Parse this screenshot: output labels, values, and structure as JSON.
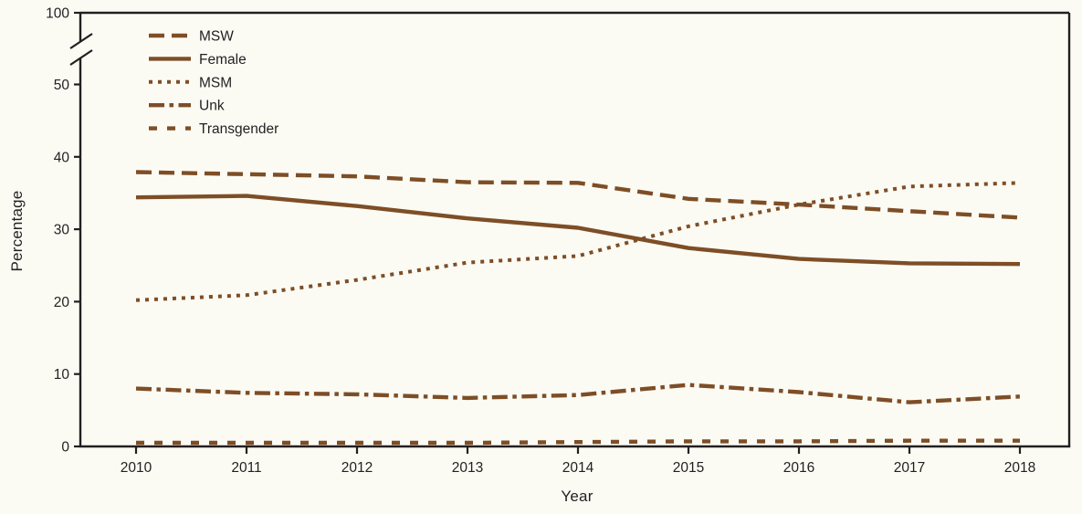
{
  "figure": {
    "ylabel": "Percentage",
    "xlabel": "Year",
    "colors": {
      "background": "#FBFBF4",
      "line": "#7E4E26",
      "axis": "#231F20",
      "text": "#231F20"
    }
  },
  "chart_data": {
    "type": "line",
    "title": "",
    "xlabel": "Year",
    "ylabel": "Percentage",
    "x": [
      2010,
      2011,
      2012,
      2013,
      2014,
      2015,
      2016,
      2017,
      2018
    ],
    "yticks": [
      0,
      10,
      20,
      30,
      40,
      50,
      100
    ],
    "ylim": [
      0,
      100
    ],
    "axis_break": {
      "between": [
        50,
        100
      ]
    },
    "grid": false,
    "legend_position": "top-left",
    "series": [
      {
        "name": "MSW",
        "line_style": "long-dash",
        "values": [
          37.9,
          37.6,
          37.3,
          36.5,
          36.4,
          34.2,
          33.4,
          32.5,
          31.6
        ]
      },
      {
        "name": "Female",
        "line_style": "solid",
        "values": [
          34.4,
          34.6,
          33.2,
          31.5,
          30.2,
          27.4,
          25.9,
          25.3,
          25.2
        ]
      },
      {
        "name": "MSM",
        "line_style": "dotted",
        "values": [
          20.2,
          20.9,
          23.0,
          25.4,
          26.3,
          30.4,
          33.4,
          35.9,
          36.4
        ]
      },
      {
        "name": "Unk",
        "line_style": "dash-dot",
        "values": [
          8.0,
          7.4,
          7.2,
          6.7,
          7.1,
          8.5,
          7.5,
          6.1,
          6.9
        ]
      },
      {
        "name": "Transgender",
        "line_style": "short-dash",
        "values": [
          0.5,
          0.5,
          0.5,
          0.5,
          0.6,
          0.7,
          0.7,
          0.8,
          0.8
        ]
      }
    ]
  }
}
